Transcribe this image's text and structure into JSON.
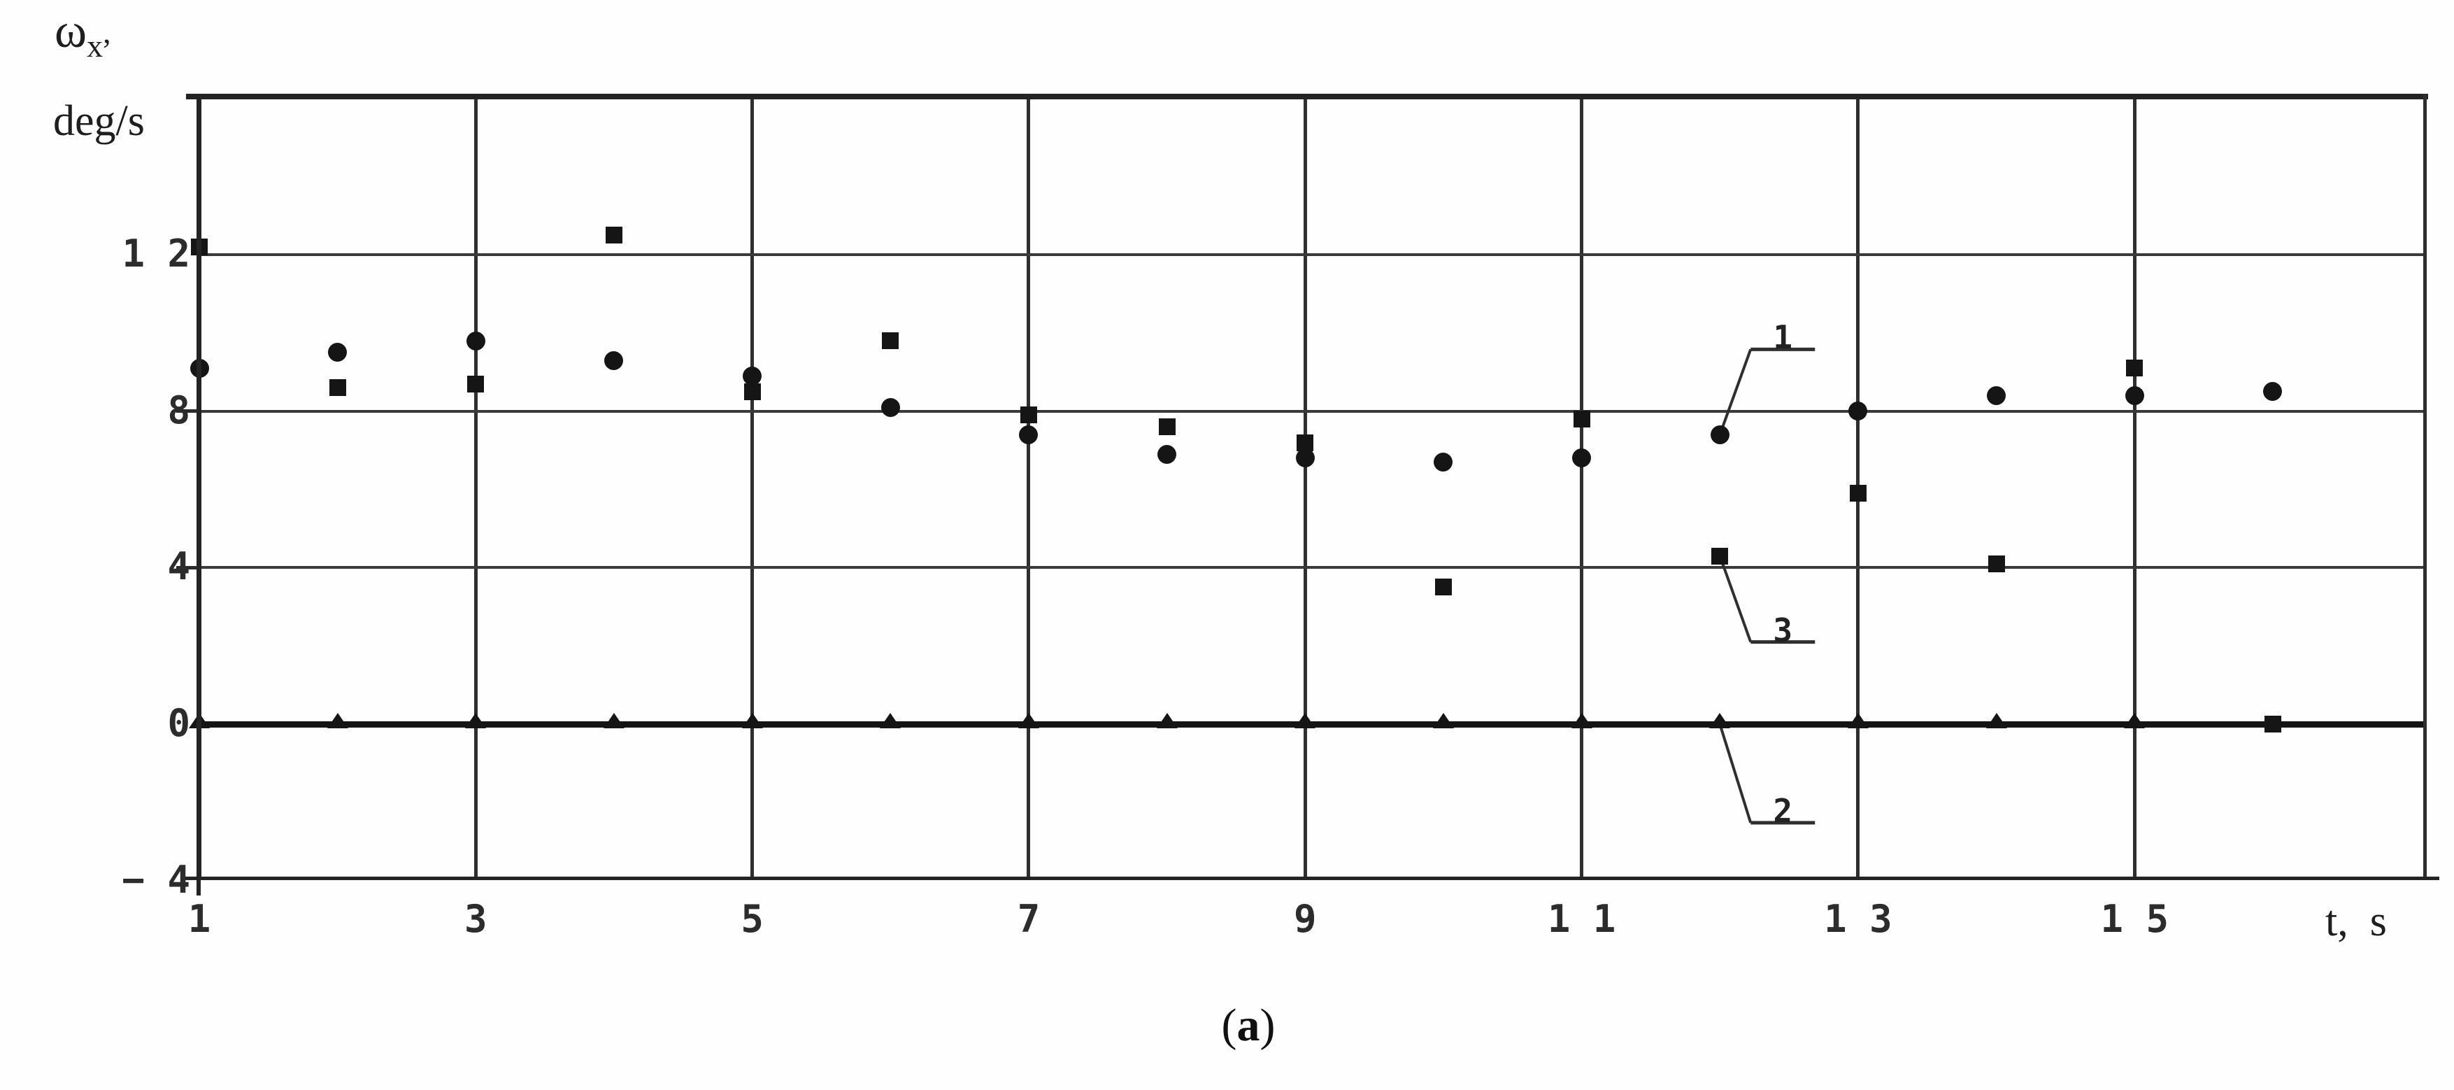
{
  "figure": {
    "y_axis_symbol": "ω",
    "y_axis_symbol_sub": "x",
    "y_axis_symbol_comma": ",",
    "y_axis_unit": "deg/s",
    "x_axis_title": "t,  s",
    "caption_open": "(",
    "caption_letter": "a",
    "caption_close": ")"
  },
  "axes": {
    "y_ticks": [
      {
        "label": "1 2",
        "value": 12,
        "dash": false
      },
      {
        "label": "8",
        "value": 8,
        "dash": true
      },
      {
        "label": "4",
        "value": 4,
        "dash": true
      },
      {
        "label": "0",
        "value": 0,
        "dash": false
      },
      {
        "label": "− 4",
        "value": -4,
        "dash": false
      }
    ],
    "x_ticks": [
      {
        "label": "1",
        "t": 1
      },
      {
        "label": "3",
        "t": 3
      },
      {
        "label": "5",
        "t": 5
      },
      {
        "label": "7",
        "t": 7
      },
      {
        "label": "9",
        "t": 9
      },
      {
        "label": "1 1",
        "t": 11
      },
      {
        "label": "1 3",
        "t": 13
      },
      {
        "label": "1 5",
        "t": 15
      }
    ]
  },
  "chart_data": {
    "type": "scatter",
    "title": "",
    "xlabel": "t, s",
    "ylabel": "ω_x, deg/s",
    "xlim": [
      1,
      17
    ],
    "ylim": [
      -4,
      16
    ],
    "grid": true,
    "x_gridlines": [
      3,
      5,
      7,
      9,
      11,
      13,
      15
    ],
    "y_gridlines": [
      12,
      8,
      4
    ],
    "series": [
      {
        "name": "1",
        "marker": "circle",
        "points": [
          [
            1,
            9.1
          ],
          [
            2,
            9.5
          ],
          [
            3,
            9.8
          ],
          [
            4,
            9.3
          ],
          [
            5,
            8.9
          ],
          [
            6,
            8.1
          ],
          [
            7,
            7.4
          ],
          [
            8,
            6.9
          ],
          [
            9,
            6.8
          ],
          [
            10,
            6.7
          ],
          [
            11,
            6.8
          ],
          [
            12,
            7.4
          ],
          [
            13,
            8.0
          ],
          [
            14,
            8.4
          ],
          [
            15,
            8.4
          ],
          [
            16,
            8.5
          ]
        ]
      },
      {
        "name": "2",
        "marker": "triangle",
        "line_y": 0,
        "points": [
          [
            1,
            0
          ],
          [
            2,
            0
          ],
          [
            3,
            0
          ],
          [
            4,
            0
          ],
          [
            5,
            0
          ],
          [
            6,
            0
          ],
          [
            7,
            0
          ],
          [
            8,
            0
          ],
          [
            9,
            0
          ],
          [
            10,
            0
          ],
          [
            11,
            0
          ],
          [
            12,
            0
          ],
          [
            13,
            0
          ],
          [
            14,
            0
          ],
          [
            15,
            0
          ]
        ]
      },
      {
        "name": "3",
        "marker": "square",
        "points": [
          [
            1,
            12.2
          ],
          [
            2,
            8.6
          ],
          [
            3,
            8.7
          ],
          [
            4,
            12.5
          ],
          [
            5,
            8.5
          ],
          [
            6,
            9.8
          ],
          [
            7,
            7.9
          ],
          [
            8,
            7.6
          ],
          [
            9,
            7.2
          ],
          [
            10,
            3.5
          ],
          [
            11,
            7.8
          ],
          [
            12,
            4.3
          ],
          [
            13,
            5.9
          ],
          [
            14,
            4.1
          ],
          [
            15,
            9.1
          ],
          [
            16,
            0
          ]
        ]
      }
    ],
    "callouts": [
      {
        "label": "1",
        "series": "1",
        "t": 12,
        "underline_dy": -122
      },
      {
        "label": "3",
        "series": "3",
        "t": 12,
        "underline_dy": 123
      },
      {
        "label": "2",
        "series": "2",
        "t": 12,
        "underline_dy": 141
      }
    ]
  }
}
